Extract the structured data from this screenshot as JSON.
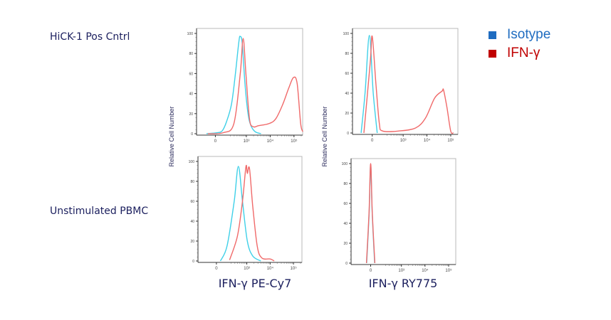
{
  "legend": {
    "items": [
      {
        "label": "Isotype",
        "color": "#1f6cc0"
      },
      {
        "label": "IFN-γ",
        "color": "#c00000"
      }
    ]
  },
  "row_labels": [
    "HiCK-1 Pos Cntrl",
    "Unstimulated PBMC"
  ],
  "column_xlabels": [
    "IFN-γ PE-Cy7",
    "IFN-γ RY775"
  ],
  "ylabel": "Relative Cell Number",
  "chart_data": [
    {
      "type": "line",
      "row": "HiCK-1 Pos Cntrl",
      "column": "IFN-γ PE-Cy7",
      "xscale": "biexponential",
      "xlim": [
        -300,
        230000
      ],
      "ylim": [
        0,
        100
      ],
      "xticks": [
        0,
        1000,
        10000,
        100000
      ],
      "xtick_labels": [
        "0",
        "10³",
        "10⁴",
        "10⁵"
      ],
      "yticks": [
        0,
        20,
        40,
        60,
        80,
        100
      ],
      "series": [
        {
          "name": "Isotype",
          "color": "#3fd0e8",
          "x": [
            -97,
            21,
            72,
            130,
            230,
            340,
            480,
            550,
            670,
            870,
            1170,
            1560,
            2340,
            4100
          ],
          "y": [
            0,
            1,
            3,
            12,
            30,
            60,
            92,
            97,
            90,
            50,
            20,
            8,
            2,
            0
          ]
        },
        {
          "name": "IFN-γ",
          "color": "#f06a6a",
          "x": [
            -80,
            84,
            290,
            550,
            730,
            950,
            1350,
            1900,
            3300,
            8700,
            17300,
            34600,
            59000,
            95000,
            135000,
            190000,
            234000
          ],
          "y": [
            0,
            1,
            10,
            60,
            95,
            60,
            15,
            7,
            8,
            10,
            15,
            30,
            45,
            56,
            50,
            10,
            2
          ]
        }
      ]
    },
    {
      "type": "line",
      "row": "HiCK-1 Pos Cntrl",
      "column": "IFN-γ RY775",
      "xscale": "biexponential",
      "xlim": [
        -330,
        200000
      ],
      "ylim": [
        0,
        100
      ],
      "xticks": [
        0,
        1000,
        10000,
        100000
      ],
      "xtick_labels": [
        "0",
        "10³",
        "10⁴",
        "10⁵"
      ],
      "yticks": [
        0,
        20,
        40,
        60,
        80,
        100
      ],
      "series": [
        {
          "name": "Isotype",
          "color": "#3fd0e8",
          "x": [
            -130,
            -75,
            -28,
            10,
            50
          ],
          "y": [
            0,
            40,
            98,
            40,
            0
          ]
        },
        {
          "name": "IFN-γ",
          "color": "#f06a6a",
          "x": [
            -90,
            -20,
            0,
            36,
            74,
            118,
            650,
            3300,
            8700,
            21000,
            43000,
            50000,
            70000,
            100000,
            130000
          ],
          "y": [
            0,
            70,
            97,
            50,
            10,
            2,
            2,
            5,
            15,
            35,
            42,
            43,
            25,
            2,
            0
          ]
        }
      ]
    },
    {
      "type": "line",
      "row": "Unstimulated PBMC",
      "column": "IFN-γ PE-Cy7",
      "xscale": "biexponential",
      "xlim": [
        -300,
        230000
      ],
      "ylim": [
        0,
        100
      ],
      "xticks": [
        0,
        1000,
        10000,
        100000
      ],
      "xtick_labels": [
        "0",
        "10³",
        "10⁴",
        "10⁵"
      ],
      "yticks": [
        0,
        20,
        40,
        60,
        80,
        100
      ],
      "series": [
        {
          "name": "Isotype",
          "color": "#3fd0e8",
          "x": [
            40,
            125,
            280,
            430,
            650,
            1050,
            1800,
            4000
          ],
          "y": [
            0,
            15,
            60,
            95,
            60,
            20,
            5,
            0
          ]
        },
        {
          "name": "IFN-γ",
          "color": "#f06a6a",
          "x": [
            170,
            390,
            650,
            920,
            1050,
            1300,
            1800,
            2800,
            4400,
            10000,
            15000
          ],
          "y": [
            1,
            25,
            60,
            95,
            88,
            93,
            55,
            15,
            3,
            2,
            0
          ]
        }
      ]
    },
    {
      "type": "line",
      "row": "Unstimulated PBMC",
      "column": "IFN-γ RY775",
      "xscale": "biexponential",
      "xlim": [
        -330,
        200000
      ],
      "ylim": [
        0,
        100
      ],
      "xticks": [
        0,
        1000,
        10000,
        100000
      ],
      "xtick_labels": [
        "0",
        "10³",
        "10⁴",
        "10⁵"
      ],
      "yticks": [
        0,
        20,
        40,
        60,
        80,
        100
      ],
      "series": [
        {
          "name": "Isotype",
          "color": "#3fd0e8",
          "x": [
            -40,
            -15,
            0,
            15,
            40
          ],
          "y": [
            0,
            50,
            99,
            50,
            0
          ]
        },
        {
          "name": "IFN-γ",
          "color": "#f06a6a",
          "x": [
            -42,
            -16,
            0,
            16,
            42
          ],
          "y": [
            0,
            50,
            100,
            50,
            0
          ]
        }
      ]
    }
  ]
}
